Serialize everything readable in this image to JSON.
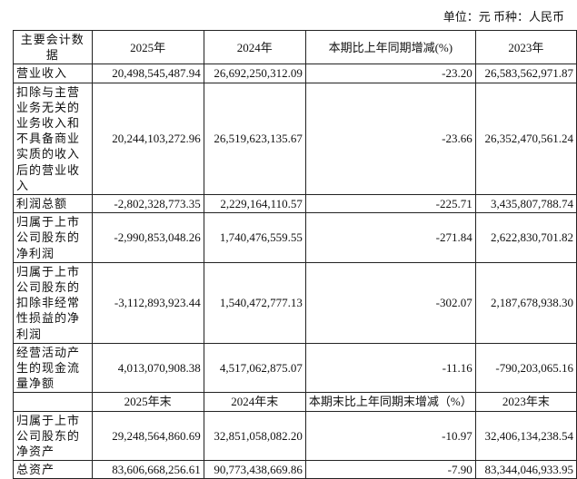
{
  "unit_note": "单位：元 币种：人民币",
  "header1": [
    "主要会计数据",
    "2025年",
    "2024年",
    "本期比上年同期增减(%)",
    "2023年"
  ],
  "rows1": [
    [
      "营业收入",
      "20,498,545,487.94",
      "26,692,250,312.09",
      "-23.20",
      "26,583,562,971.87"
    ],
    [
      "扣除与主营业务无关的业务收入和不具备商业实质的收入后的营业收入",
      "20,244,103,272.96",
      "26,519,623,135.67",
      "-23.66",
      "26,352,470,561.24"
    ],
    [
      "利润总额",
      "-2,802,328,773.35",
      "2,229,164,110.57",
      "-225.71",
      "3,435,807,788.74"
    ],
    [
      "归属于上市公司股东的净利润",
      "-2,990,853,048.26",
      "1,740,476,559.55",
      "-271.84",
      "2,622,830,701.82"
    ],
    [
      "归属于上市公司股东的扣除非经常性损益的净利润",
      "-3,112,893,923.44",
      "1,540,472,777.13",
      "-302.07",
      "2,187,678,938.30"
    ],
    [
      "经营活动产生的现金流量净额",
      "4,013,070,908.38",
      "4,517,062,875.07",
      "-11.16",
      "-790,203,065.16"
    ]
  ],
  "header2": [
    "",
    "2025年末",
    "2024年末",
    "本期末比上年同期末增减（%）",
    "2023年末"
  ],
  "rows2": [
    [
      "归属于上市公司股东的净资产",
      "29,248,564,860.69",
      "32,851,058,082.20",
      "-10.97",
      "32,406,134,238.54"
    ],
    [
      "总资产",
      "83,606,668,256.61",
      "90,773,438,669.86",
      "-7.90",
      "83,344,046,933.95"
    ]
  ]
}
